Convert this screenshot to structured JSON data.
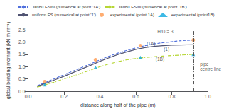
{
  "chart_data": {
    "type": "line",
    "xlabel": "distance along half of the pipe (m)",
    "ylabel": "global bending moment (kN m m⁻¹)",
    "xlim": [
      0,
      1.0
    ],
    "ylim": [
      0,
      2.5
    ],
    "xticks": [
      {
        "value": 0,
        "label": "0.0"
      },
      0.2,
      0.4,
      0.6,
      0.8,
      {
        "value": 1.0,
        "label": "1.0"
      }
    ],
    "yticks": [
      {
        "value": 0,
        "label": "0.0"
      },
      0.5,
      {
        "value": 1.0,
        "label": "1.0"
      },
      1.5,
      {
        "value": 2.0,
        "label": "2.0"
      },
      2.5
    ],
    "grid": false,
    "legend": "upper left",
    "series": [
      {
        "name": "Janbu ESini (numerical at point '1A')",
        "type": "line",
        "line_style": "dashed",
        "x": [
          0.05,
          0.1,
          0.15,
          0.2,
          0.25,
          0.3,
          0.35,
          0.4,
          0.45,
          0.5,
          0.55,
          0.6,
          0.65,
          0.7,
          0.75,
          0.8,
          0.85,
          0.92
        ],
        "values": [
          0.22,
          0.37,
          0.52,
          0.67,
          0.82,
          0.97,
          1.12,
          1.28,
          1.42,
          1.55,
          1.66,
          1.76,
          1.85,
          1.92,
          1.97,
          2.01,
          2.05,
          2.08
        ]
      },
      {
        "name": "Janbu ESini (numerical at point '1B')",
        "type": "line",
        "line_style": "dashdot",
        "x": [
          0.05,
          0.1,
          0.15,
          0.2,
          0.25,
          0.3,
          0.35,
          0.4,
          0.45,
          0.5,
          0.55,
          0.6,
          0.65,
          0.7,
          0.75,
          0.8,
          0.85,
          0.92
        ],
        "values": [
          0.17,
          0.27,
          0.38,
          0.5,
          0.62,
          0.74,
          0.87,
          1.0,
          1.11,
          1.2,
          1.28,
          1.33,
          1.37,
          1.4,
          1.43,
          1.45,
          1.47,
          1.5
        ]
      },
      {
        "name": "uniform ES (numerical at point '1')",
        "type": "line",
        "line_style": "solid",
        "x": [
          0.05,
          0.1,
          0.15,
          0.2,
          0.25,
          0.3,
          0.35,
          0.4,
          0.45,
          0.5,
          0.55,
          0.6,
          0.65,
          0.7,
          0.75,
          0.8,
          0.85,
          0.92
        ],
        "values": [
          0.2,
          0.33,
          0.47,
          0.61,
          0.76,
          0.91,
          1.06,
          1.22,
          1.36,
          1.49,
          1.6,
          1.7,
          1.77,
          1.82,
          1.85,
          1.87,
          1.88,
          1.89
        ]
      },
      {
        "name": "experimental (point 1A)",
        "type": "scatter",
        "marker": "circle",
        "x": [
          0.092,
          0.375,
          0.625,
          0.92
        ],
        "values": [
          0.39,
          1.28,
          1.85,
          2.08
        ]
      },
      {
        "name": "experimental (point1B)",
        "type": "scatter",
        "marker": "triangle",
        "x": [
          0.092,
          0.375,
          0.625,
          0.92
        ],
        "values": [
          0.27,
          0.97,
          1.37,
          1.5
        ]
      }
    ],
    "vlines": [
      0.92
    ],
    "annotations": [
      {
        "text": "H/D = 3",
        "x": 0.72,
        "y": 2.42
      },
      {
        "text": "(1A)",
        "x": 0.66,
        "y": 1.95
      },
      {
        "text": "(1B)",
        "x": 0.71,
        "y": 1.3
      },
      {
        "text": "(1)",
        "x": 0.755,
        "y": 1.72
      },
      {
        "text": "pipe",
        "x": 0.957,
        "y": 1.1
      },
      {
        "text": "centre line",
        "x": 0.957,
        "y": 0.9
      }
    ]
  }
}
